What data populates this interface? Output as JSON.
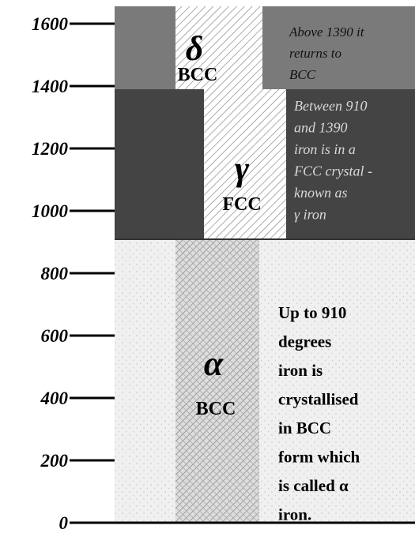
{
  "axis": {
    "ticks": [
      "1600",
      "1400",
      "1200",
      "1000",
      "800",
      "600",
      "400",
      "200",
      "0"
    ]
  },
  "phases": {
    "delta": {
      "symbol": "δ",
      "structure": "BCC",
      "description": [
        "Above 1390 it",
        "returns to",
        "BCC"
      ]
    },
    "gamma": {
      "symbol": "γ",
      "structure": "FCC",
      "description": [
        "Between 910",
        "and 1390",
        "iron is in a",
        "FCC crystal -",
        "known as",
        "γ  iron"
      ]
    },
    "alpha": {
      "symbol": "α",
      "structure": "BCC",
      "description": [
        "Up to 910",
        "degrees",
        "iron is",
        "crystallised",
        "in BCC",
        "form which",
        "is called α",
        " iron."
      ]
    }
  }
}
